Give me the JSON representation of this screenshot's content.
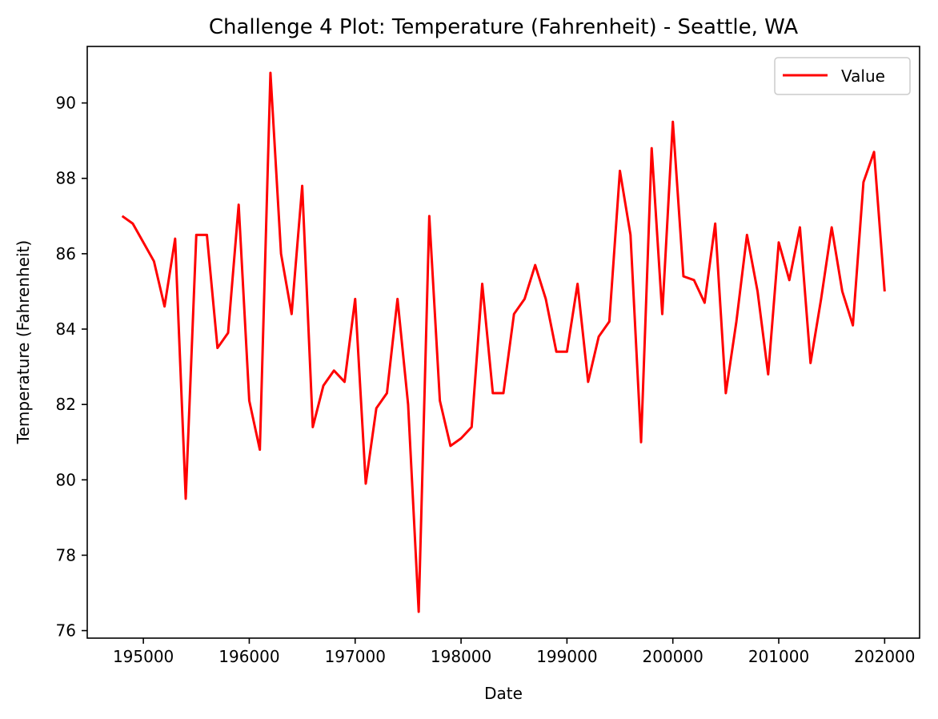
{
  "chart_data": {
    "type": "line",
    "title": "Challenge 4 Plot: Temperature (Fahrenheit) - Seattle, WA",
    "xlabel": "Date",
    "ylabel": "Temperature (Fahrenheit)",
    "xlim": [
      194470,
      202330
    ],
    "ylim": [
      75.8,
      91.5
    ],
    "xticks": [
      195000,
      196000,
      197000,
      198000,
      199000,
      200000,
      201000,
      202000
    ],
    "yticks": [
      76,
      78,
      80,
      82,
      84,
      86,
      88,
      90
    ],
    "legend": {
      "position": "top-right"
    },
    "grid": false,
    "series": [
      {
        "name": "Value",
        "color": "#ff0000",
        "x": [
          194800,
          194900,
          195000,
          195100,
          195200,
          195300,
          195400,
          195500,
          195600,
          195700,
          195800,
          195900,
          196000,
          196100,
          196200,
          196300,
          196400,
          196500,
          196600,
          196700,
          196800,
          196900,
          197000,
          197100,
          197200,
          197300,
          197400,
          197500,
          197600,
          197700,
          197800,
          197900,
          198000,
          198100,
          198200,
          198300,
          198400,
          198500,
          198600,
          198700,
          198800,
          198900,
          199000,
          199100,
          199200,
          199300,
          199400,
          199500,
          199600,
          199700,
          199800,
          199900,
          200000,
          200100,
          200200,
          200300,
          200400,
          200500,
          200600,
          200700,
          200800,
          200900,
          201000,
          201100,
          201200,
          201300,
          201400,
          201500,
          201600,
          201700,
          201800,
          201900,
          202000
        ],
        "y": [
          87.0,
          86.8,
          86.3,
          85.8,
          84.6,
          86.4,
          79.5,
          86.5,
          86.5,
          83.5,
          83.9,
          87.3,
          82.1,
          80.8,
          90.8,
          86.0,
          84.4,
          87.8,
          81.4,
          82.5,
          82.9,
          82.6,
          84.8,
          79.9,
          81.9,
          82.3,
          84.8,
          82.0,
          76.5,
          87.0,
          82.1,
          80.9,
          81.1,
          81.4,
          85.2,
          82.3,
          82.3,
          84.4,
          84.8,
          85.7,
          84.8,
          83.4,
          83.4,
          85.2,
          82.6,
          83.8,
          84.2,
          88.2,
          86.5,
          81.0,
          88.8,
          84.4,
          89.5,
          85.4,
          85.3,
          84.7,
          86.8,
          82.3,
          84.2,
          86.5,
          85.0,
          82.8,
          86.3,
          85.3,
          86.7,
          83.1,
          84.8,
          86.7,
          85.0,
          84.1,
          87.9,
          88.7,
          85.0
        ]
      }
    ]
  }
}
